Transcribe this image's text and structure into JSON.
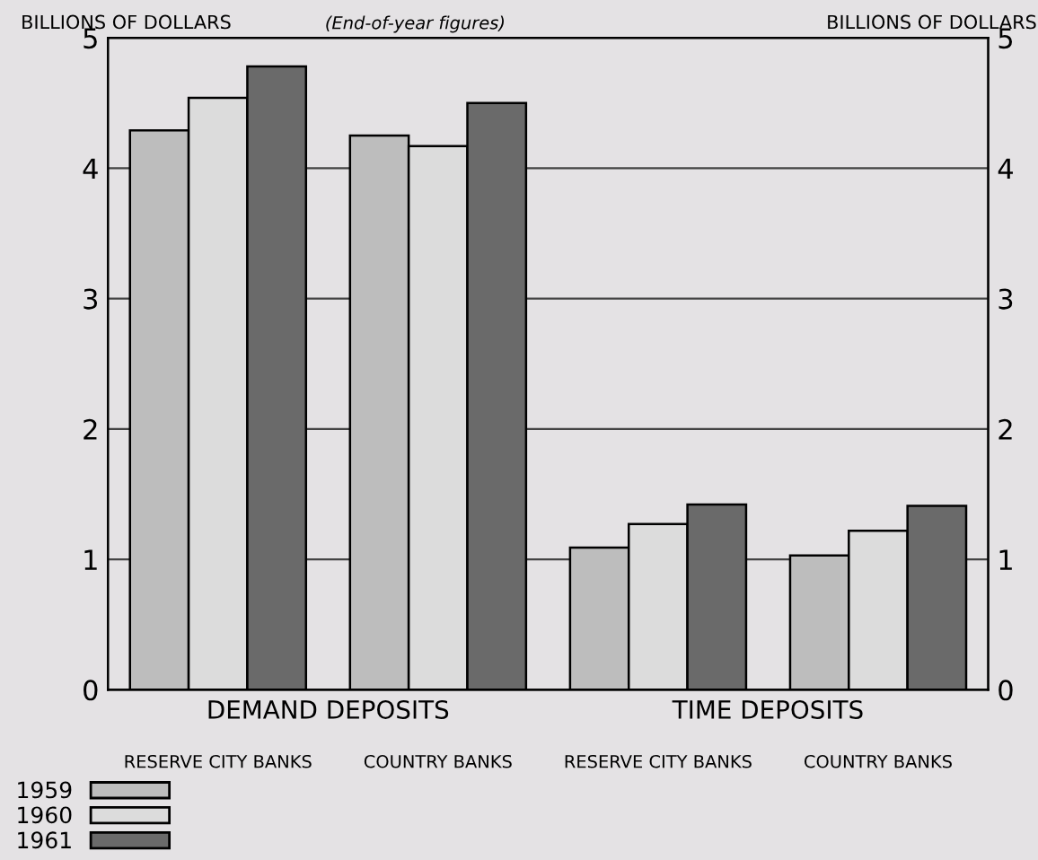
{
  "chart_data": {
    "type": "bar",
    "subtitle": "(End-of-year figures)",
    "ylabel": "BILLIONS OF DOLLARS",
    "y2label": "BILLIONS OF DOLLARS",
    "categories": [
      "RESERVE CITY BANKS",
      "COUNTRY BANKS",
      "RESERVE CITY BANKS",
      "COUNTRY BANKS"
    ],
    "series": [
      {
        "name": "1959",
        "color": "#bdbdbd",
        "values": [
          4.29,
          4.25,
          1.09,
          1.03
        ]
      },
      {
        "name": "1960",
        "color": "#dcdcdc",
        "values": [
          4.54,
          4.17,
          1.27,
          1.22
        ]
      },
      {
        "name": "1961",
        "color": "#6a6a6a",
        "values": [
          4.78,
          4.5,
          1.42,
          1.41
        ]
      }
    ],
    "annotations": [
      "DEMAND DEPOSITS",
      "TIME DEPOSITS"
    ],
    "ylim": [
      0,
      5
    ],
    "yticks": [
      0,
      1,
      2,
      3,
      4,
      5
    ],
    "y2lim": [
      0,
      5
    ],
    "y2ticks": [
      0,
      1,
      2,
      3,
      4,
      5
    ],
    "grid": "y",
    "legend": "bottom left"
  }
}
